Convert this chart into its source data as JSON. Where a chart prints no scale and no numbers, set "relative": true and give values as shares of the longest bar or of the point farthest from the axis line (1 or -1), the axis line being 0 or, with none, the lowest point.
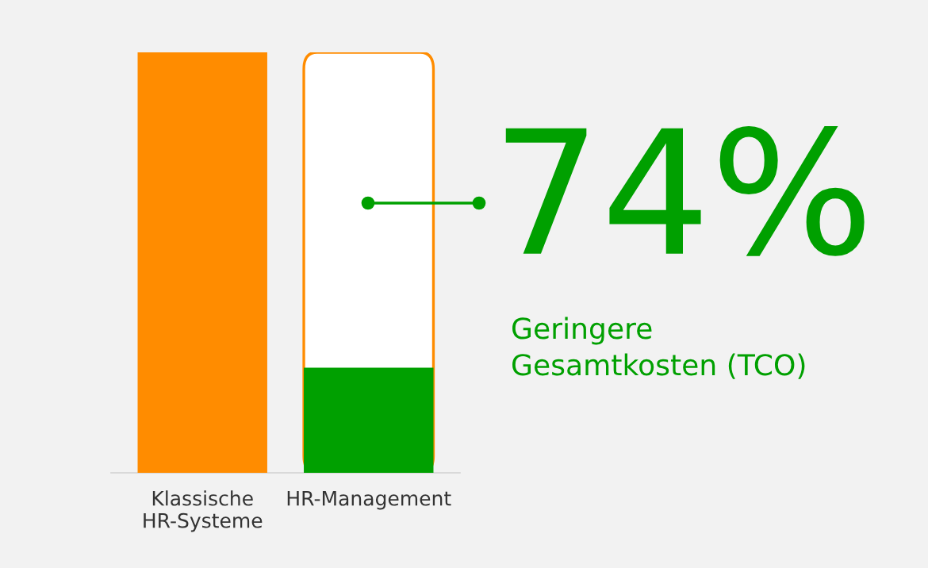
{
  "chart_data": {
    "type": "bar",
    "relative": true,
    "categories": [
      "Klassische\nHR-Systeme",
      "HR-Management"
    ],
    "values": [
      1,
      0.25
    ],
    "colors": [
      "#ff8c00",
      "#00a000"
    ],
    "annotations": [
      "74%",
      "Geringere\nGesamtkosten (TCO)"
    ],
    "legend": false
  }
}
